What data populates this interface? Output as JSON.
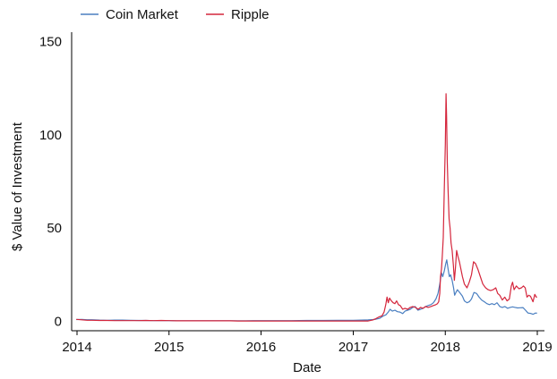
{
  "chart_data": {
    "type": "line",
    "title": "",
    "xlabel": "Date",
    "ylabel": "$ Value of Investment",
    "x_axis_type": "date",
    "xlim": [
      "2014-01-01",
      "2019-01-01"
    ],
    "ylim": [
      -5,
      155
    ],
    "x_ticks": [
      {
        "date": "2014-01-01",
        "label": "2014"
      },
      {
        "date": "2015-01-01",
        "label": "2015"
      },
      {
        "date": "2016-01-01",
        "label": "2016"
      },
      {
        "date": "2017-01-01",
        "label": "2017"
      },
      {
        "date": "2018-01-01",
        "label": "2018"
      },
      {
        "date": "2019-01-01",
        "label": "2019"
      }
    ],
    "y_ticks": [
      {
        "value": 0,
        "label": "0"
      },
      {
        "value": 50,
        "label": "50"
      },
      {
        "value": 100,
        "label": "100"
      },
      {
        "value": 150,
        "label": "150"
      }
    ],
    "grid": false,
    "legend_position": "top",
    "series": [
      {
        "name": "Coin Market",
        "color": "#4a7fc1",
        "points": [
          [
            "2013-12-29",
            1.0
          ],
          [
            "2014-01-20",
            1.1
          ],
          [
            "2014-02-10",
            0.9
          ],
          [
            "2014-03-01",
            0.9
          ],
          [
            "2014-04-01",
            0.7
          ],
          [
            "2014-05-01",
            0.6
          ],
          [
            "2014-06-01",
            0.7
          ],
          [
            "2014-07-01",
            0.7
          ],
          [
            "2014-08-01",
            0.6
          ],
          [
            "2014-09-01",
            0.5
          ],
          [
            "2014-10-01",
            0.5
          ],
          [
            "2014-11-01",
            0.4
          ],
          [
            "2014-12-01",
            0.4
          ],
          [
            "2015-01-01",
            0.4
          ],
          [
            "2015-02-01",
            0.3
          ],
          [
            "2015-03-01",
            0.3
          ],
          [
            "2015-04-01",
            0.3
          ],
          [
            "2015-05-01",
            0.3
          ],
          [
            "2015-06-01",
            0.3
          ],
          [
            "2015-07-01",
            0.3
          ],
          [
            "2015-08-01",
            0.3
          ],
          [
            "2015-09-01",
            0.3
          ],
          [
            "2015-10-01",
            0.3
          ],
          [
            "2015-11-01",
            0.3
          ],
          [
            "2015-12-01",
            0.4
          ],
          [
            "2016-01-01",
            0.4
          ],
          [
            "2016-03-01",
            0.4
          ],
          [
            "2016-05-01",
            0.4
          ],
          [
            "2016-07-01",
            0.5
          ],
          [
            "2016-09-01",
            0.5
          ],
          [
            "2016-11-01",
            0.6
          ],
          [
            "2017-01-01",
            0.6
          ],
          [
            "2017-02-01",
            0.7
          ],
          [
            "2017-03-01",
            0.8
          ],
          [
            "2017-03-20",
            1.0
          ],
          [
            "2017-04-01",
            1.2
          ],
          [
            "2017-04-15",
            1.6
          ],
          [
            "2017-05-01",
            3.0
          ],
          [
            "2017-05-10",
            3.5
          ],
          [
            "2017-05-20",
            5.0
          ],
          [
            "2017-05-27",
            6.5
          ],
          [
            "2017-06-05",
            5.5
          ],
          [
            "2017-06-15",
            6.0
          ],
          [
            "2017-06-25",
            5.2
          ],
          [
            "2017-07-05",
            5.0
          ],
          [
            "2017-07-16",
            4.2
          ],
          [
            "2017-07-25",
            5.5
          ],
          [
            "2017-08-05",
            6.0
          ],
          [
            "2017-08-15",
            6.5
          ],
          [
            "2017-08-25",
            7.5
          ],
          [
            "2017-09-03",
            8.0
          ],
          [
            "2017-09-14",
            6.0
          ],
          [
            "2017-09-25",
            6.5
          ],
          [
            "2017-10-05",
            7.0
          ],
          [
            "2017-10-15",
            8.0
          ],
          [
            "2017-10-25",
            8.5
          ],
          [
            "2017-11-05",
            9.0
          ],
          [
            "2017-11-15",
            10.0
          ],
          [
            "2017-11-25",
            12.0
          ],
          [
            "2017-12-03",
            15.0
          ],
          [
            "2017-12-10",
            20.0
          ],
          [
            "2017-12-17",
            26.0
          ],
          [
            "2017-12-22",
            24.0
          ],
          [
            "2017-12-28",
            27.0
          ],
          [
            "2018-01-03",
            31.0
          ],
          [
            "2018-01-07",
            33.0
          ],
          [
            "2018-01-12",
            28.0
          ],
          [
            "2018-01-17",
            24.0
          ],
          [
            "2018-01-22",
            25.0
          ],
          [
            "2018-01-28",
            22.0
          ],
          [
            "2018-02-03",
            18.0
          ],
          [
            "2018-02-07",
            14.0
          ],
          [
            "2018-02-12",
            15.5
          ],
          [
            "2018-02-18",
            17.0
          ],
          [
            "2018-02-24",
            16.0
          ],
          [
            "2018-03-02",
            15.0
          ],
          [
            "2018-03-10",
            13.5
          ],
          [
            "2018-03-18",
            11.0
          ],
          [
            "2018-03-28",
            10.0
          ],
          [
            "2018-04-06",
            10.5
          ],
          [
            "2018-04-15",
            12.0
          ],
          [
            "2018-04-25",
            15.5
          ],
          [
            "2018-05-05",
            15.0
          ],
          [
            "2018-05-15",
            13.0
          ],
          [
            "2018-05-25",
            11.5
          ],
          [
            "2018-06-05",
            10.5
          ],
          [
            "2018-06-15",
            9.5
          ],
          [
            "2018-06-25",
            9.0
          ],
          [
            "2018-07-05",
            9.5
          ],
          [
            "2018-07-15",
            9.0
          ],
          [
            "2018-07-25",
            10.0
          ],
          [
            "2018-08-05",
            8.0
          ],
          [
            "2018-08-15",
            7.5
          ],
          [
            "2018-08-25",
            8.0
          ],
          [
            "2018-09-05",
            7.0
          ],
          [
            "2018-09-15",
            7.5
          ],
          [
            "2018-09-25",
            7.8
          ],
          [
            "2018-10-05",
            7.5
          ],
          [
            "2018-10-15",
            7.2
          ],
          [
            "2018-10-25",
            7.3
          ],
          [
            "2018-11-05",
            7.4
          ],
          [
            "2018-11-15",
            6.0
          ],
          [
            "2018-11-25",
            4.5
          ],
          [
            "2018-12-05",
            4.3
          ],
          [
            "2018-12-15",
            3.8
          ],
          [
            "2018-12-25",
            4.5
          ],
          [
            "2018-12-31",
            4.4
          ]
        ]
      },
      {
        "name": "Ripple",
        "color": "#d4263c",
        "points": [
          [
            "2013-12-29",
            1.1
          ],
          [
            "2014-01-15",
            0.9
          ],
          [
            "2014-02-10",
            0.6
          ],
          [
            "2014-03-01",
            0.6
          ],
          [
            "2014-04-01",
            0.5
          ],
          [
            "2014-05-01",
            0.5
          ],
          [
            "2014-06-01",
            0.4
          ],
          [
            "2014-07-01",
            0.4
          ],
          [
            "2014-08-01",
            0.4
          ],
          [
            "2014-09-01",
            0.4
          ],
          [
            "2014-10-01",
            0.5
          ],
          [
            "2014-11-01",
            0.4
          ],
          [
            "2014-12-01",
            0.5
          ],
          [
            "2015-01-01",
            0.4
          ],
          [
            "2015-02-01",
            0.3
          ],
          [
            "2015-03-01",
            0.3
          ],
          [
            "2015-04-01",
            0.3
          ],
          [
            "2015-05-01",
            0.3
          ],
          [
            "2015-06-01",
            0.3
          ],
          [
            "2015-07-01",
            0.3
          ],
          [
            "2015-08-01",
            0.3
          ],
          [
            "2015-09-01",
            0.3
          ],
          [
            "2015-10-01",
            0.2
          ],
          [
            "2015-11-01",
            0.2
          ],
          [
            "2015-12-01",
            0.2
          ],
          [
            "2016-01-01",
            0.2
          ],
          [
            "2016-03-01",
            0.2
          ],
          [
            "2016-05-01",
            0.2
          ],
          [
            "2016-07-01",
            0.2
          ],
          [
            "2016-09-01",
            0.2
          ],
          [
            "2016-11-01",
            0.2
          ],
          [
            "2017-01-01",
            0.2
          ],
          [
            "2017-02-01",
            0.2
          ],
          [
            "2017-03-01",
            0.2
          ],
          [
            "2017-03-20",
            0.8
          ],
          [
            "2017-04-01",
            1.5
          ],
          [
            "2017-04-15",
            2.5
          ],
          [
            "2017-04-25",
            3.0
          ],
          [
            "2017-05-03",
            5.0
          ],
          [
            "2017-05-10",
            9.0
          ],
          [
            "2017-05-15",
            13.0
          ],
          [
            "2017-05-20",
            10.0
          ],
          [
            "2017-05-25",
            12.5
          ],
          [
            "2017-06-01",
            11.0
          ],
          [
            "2017-06-08",
            10.0
          ],
          [
            "2017-06-15",
            9.5
          ],
          [
            "2017-06-22",
            11.0
          ],
          [
            "2017-06-29",
            9.0
          ],
          [
            "2017-07-06",
            8.5
          ],
          [
            "2017-07-16",
            6.5
          ],
          [
            "2017-07-25",
            7.0
          ],
          [
            "2017-08-05",
            6.5
          ],
          [
            "2017-08-15",
            7.5
          ],
          [
            "2017-08-25",
            8.0
          ],
          [
            "2017-09-05",
            7.5
          ],
          [
            "2017-09-15",
            6.5
          ],
          [
            "2017-09-25",
            7.5
          ],
          [
            "2017-10-05",
            7.0
          ],
          [
            "2017-10-15",
            8.0
          ],
          [
            "2017-10-25",
            7.5
          ],
          [
            "2017-11-05",
            8.0
          ],
          [
            "2017-11-15",
            8.5
          ],
          [
            "2017-11-25",
            9.0
          ],
          [
            "2017-12-01",
            9.5
          ],
          [
            "2017-12-06",
            10.5
          ],
          [
            "2017-12-10",
            15.0
          ],
          [
            "2017-12-13",
            24.0
          ],
          [
            "2017-12-17",
            28.0
          ],
          [
            "2017-12-20",
            35.0
          ],
          [
            "2017-12-24",
            45.0
          ],
          [
            "2017-12-28",
            70.0
          ],
          [
            "2018-01-01",
            95.0
          ],
          [
            "2018-01-04",
            122.0
          ],
          [
            "2018-01-06",
            110.0
          ],
          [
            "2018-01-09",
            85.0
          ],
          [
            "2018-01-12",
            70.0
          ],
          [
            "2018-01-16",
            55.0
          ],
          [
            "2018-01-20",
            50.0
          ],
          [
            "2018-01-24",
            42.0
          ],
          [
            "2018-01-28",
            38.0
          ],
          [
            "2018-02-02",
            30.0
          ],
          [
            "2018-02-06",
            22.0
          ],
          [
            "2018-02-10",
            28.0
          ],
          [
            "2018-02-15",
            38.0
          ],
          [
            "2018-02-20",
            35.0
          ],
          [
            "2018-02-26",
            32.0
          ],
          [
            "2018-03-04",
            28.0
          ],
          [
            "2018-03-10",
            24.0
          ],
          [
            "2018-03-18",
            20.0
          ],
          [
            "2018-03-28",
            18.0
          ],
          [
            "2018-04-06",
            21.0
          ],
          [
            "2018-04-15",
            25.0
          ],
          [
            "2018-04-23",
            32.0
          ],
          [
            "2018-05-01",
            31.0
          ],
          [
            "2018-05-10",
            28.0
          ],
          [
            "2018-05-20",
            24.0
          ],
          [
            "2018-05-30",
            20.0
          ],
          [
            "2018-06-10",
            18.0
          ],
          [
            "2018-06-20",
            17.0
          ],
          [
            "2018-06-30",
            16.5
          ],
          [
            "2018-07-10",
            17.0
          ],
          [
            "2018-07-20",
            18.0
          ],
          [
            "2018-07-28",
            15.0
          ],
          [
            "2018-08-05",
            14.0
          ],
          [
            "2018-08-15",
            11.5
          ],
          [
            "2018-08-25",
            13.0
          ],
          [
            "2018-09-03",
            11.0
          ],
          [
            "2018-09-12",
            12.0
          ],
          [
            "2018-09-20",
            19.0
          ],
          [
            "2018-09-25",
            21.0
          ],
          [
            "2018-10-01",
            17.0
          ],
          [
            "2018-10-10",
            19.0
          ],
          [
            "2018-10-20",
            17.5
          ],
          [
            "2018-10-30",
            18.0
          ],
          [
            "2018-11-07",
            19.0
          ],
          [
            "2018-11-14",
            18.0
          ],
          [
            "2018-11-21",
            13.0
          ],
          [
            "2018-11-28",
            14.0
          ],
          [
            "2018-12-05",
            13.5
          ],
          [
            "2018-12-15",
            10.5
          ],
          [
            "2018-12-22",
            14.5
          ],
          [
            "2018-12-28",
            13.0
          ],
          [
            "2018-12-31",
            13.0
          ]
        ]
      }
    ]
  }
}
